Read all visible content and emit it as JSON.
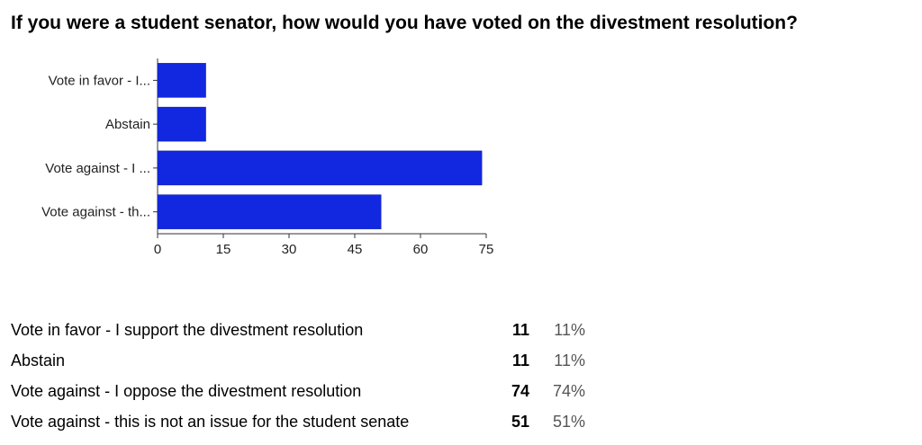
{
  "chart_data": {
    "type": "bar",
    "orientation": "horizontal",
    "title": "If you were a student senator, how would you have voted on the divestment resolution?",
    "categories": [
      "Vote in favor - I...",
      "Abstain",
      "Vote against - I ...",
      "Vote against - th..."
    ],
    "values": [
      11,
      11,
      74,
      51
    ],
    "xlim": [
      0,
      75
    ],
    "xticks": [
      0,
      15,
      30,
      45,
      60,
      75
    ],
    "bar_color": "#1227e0",
    "grid": false
  },
  "summary": [
    {
      "label": "Vote in favor - I support the divestment resolution",
      "count": "11",
      "percent": "11%"
    },
    {
      "label": "Abstain",
      "count": "11",
      "percent": "11%"
    },
    {
      "label": "Vote against - I oppose the divestment resolution",
      "count": "74",
      "percent": "74%"
    },
    {
      "label": "Vote against - this is not an issue for the student senate",
      "count": "51",
      "percent": "51%"
    }
  ]
}
